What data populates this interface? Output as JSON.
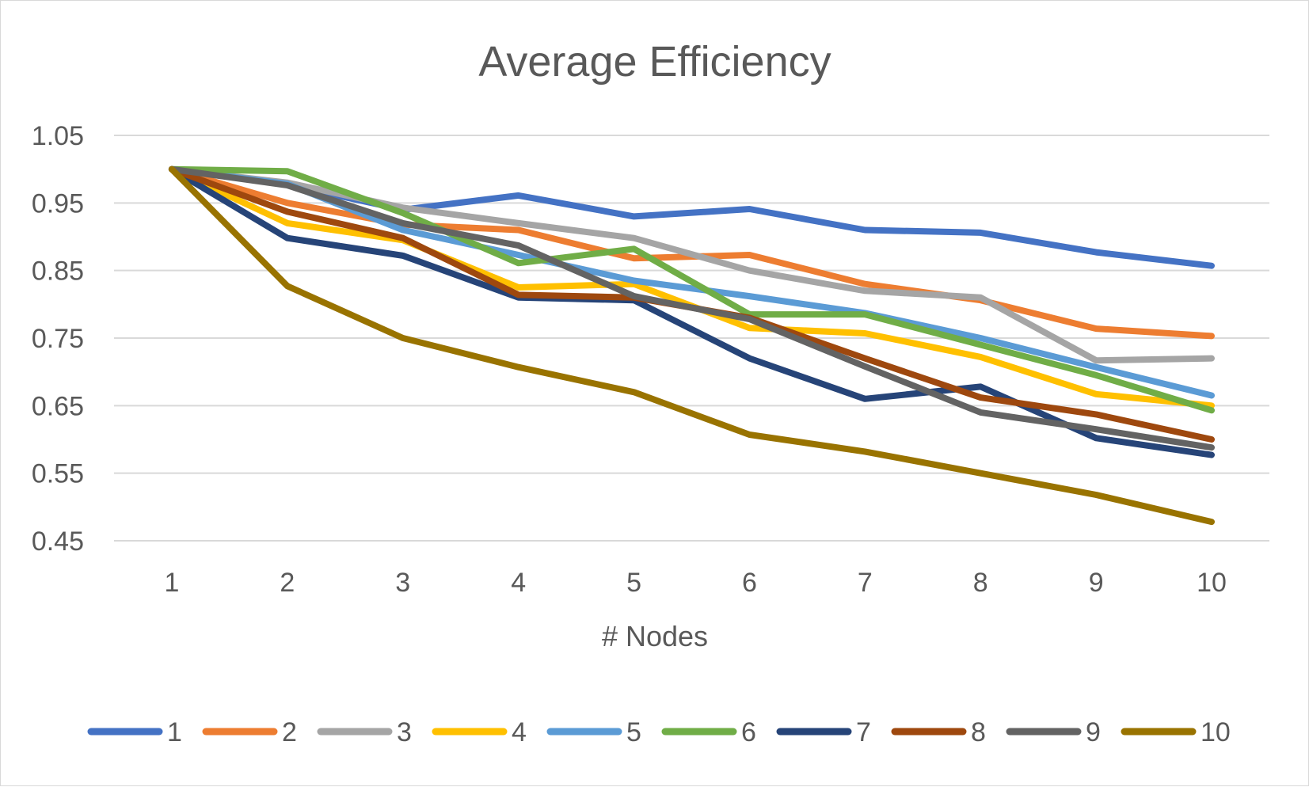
{
  "chart_data": {
    "type": "line",
    "title": "Average Efficiency",
    "xlabel": "# Nodes",
    "ylabel": "",
    "x": [
      1,
      2,
      3,
      4,
      5,
      6,
      7,
      8,
      9,
      10
    ],
    "x_tick_labels": [
      "1",
      "2",
      "3",
      "4",
      "5",
      "6",
      "7",
      "8",
      "9",
      "10"
    ],
    "ylim": [
      0.45,
      1.05
    ],
    "y_ticks": [
      0.45,
      0.55,
      0.65,
      0.75,
      0.85,
      0.95,
      1.05
    ],
    "y_tick_labels": [
      "0.45",
      "0.55",
      "0.65",
      "0.75",
      "0.85",
      "0.95",
      "1.05"
    ],
    "grid": "horizontal",
    "legend_position": "bottom",
    "series": [
      {
        "name": "1",
        "color": "#4472c4",
        "values": [
          1.0,
          0.977,
          0.94,
          0.961,
          0.93,
          0.941,
          0.91,
          0.906,
          0.877,
          0.857
        ]
      },
      {
        "name": "2",
        "color": "#ed7d31",
        "values": [
          1.0,
          0.95,
          0.918,
          0.91,
          0.868,
          0.873,
          0.83,
          0.806,
          0.764,
          0.753
        ]
      },
      {
        "name": "3",
        "color": "#a5a5a5",
        "values": [
          1.0,
          0.98,
          0.943,
          0.92,
          0.898,
          0.85,
          0.82,
          0.81,
          0.717,
          0.72
        ]
      },
      {
        "name": "4",
        "color": "#ffc000",
        "values": [
          1.0,
          0.92,
          0.895,
          0.825,
          0.83,
          0.765,
          0.757,
          0.722,
          0.667,
          0.65
        ]
      },
      {
        "name": "5",
        "color": "#5b9bd5",
        "values": [
          1.0,
          0.978,
          0.91,
          0.873,
          0.835,
          0.812,
          0.787,
          0.75,
          0.707,
          0.665
        ]
      },
      {
        "name": "6",
        "color": "#70ad47",
        "values": [
          1.0,
          0.997,
          0.935,
          0.861,
          0.882,
          0.785,
          0.785,
          0.74,
          0.695,
          0.643
        ]
      },
      {
        "name": "7",
        "color": "#264478",
        "values": [
          1.0,
          0.898,
          0.872,
          0.81,
          0.806,
          0.72,
          0.66,
          0.678,
          0.602,
          0.577
        ]
      },
      {
        "name": "8",
        "color": "#9e480e",
        "values": [
          1.0,
          0.937,
          0.898,
          0.814,
          0.81,
          0.78,
          0.72,
          0.662,
          0.637,
          0.6
        ]
      },
      {
        "name": "9",
        "color": "#636363",
        "values": [
          1.0,
          0.976,
          0.92,
          0.887,
          0.812,
          0.778,
          0.708,
          0.64,
          0.615,
          0.588
        ]
      },
      {
        "name": "10",
        "color": "#997300",
        "values": [
          1.0,
          0.827,
          0.75,
          0.707,
          0.67,
          0.607,
          0.582,
          0.55,
          0.518,
          0.478
        ]
      }
    ]
  }
}
